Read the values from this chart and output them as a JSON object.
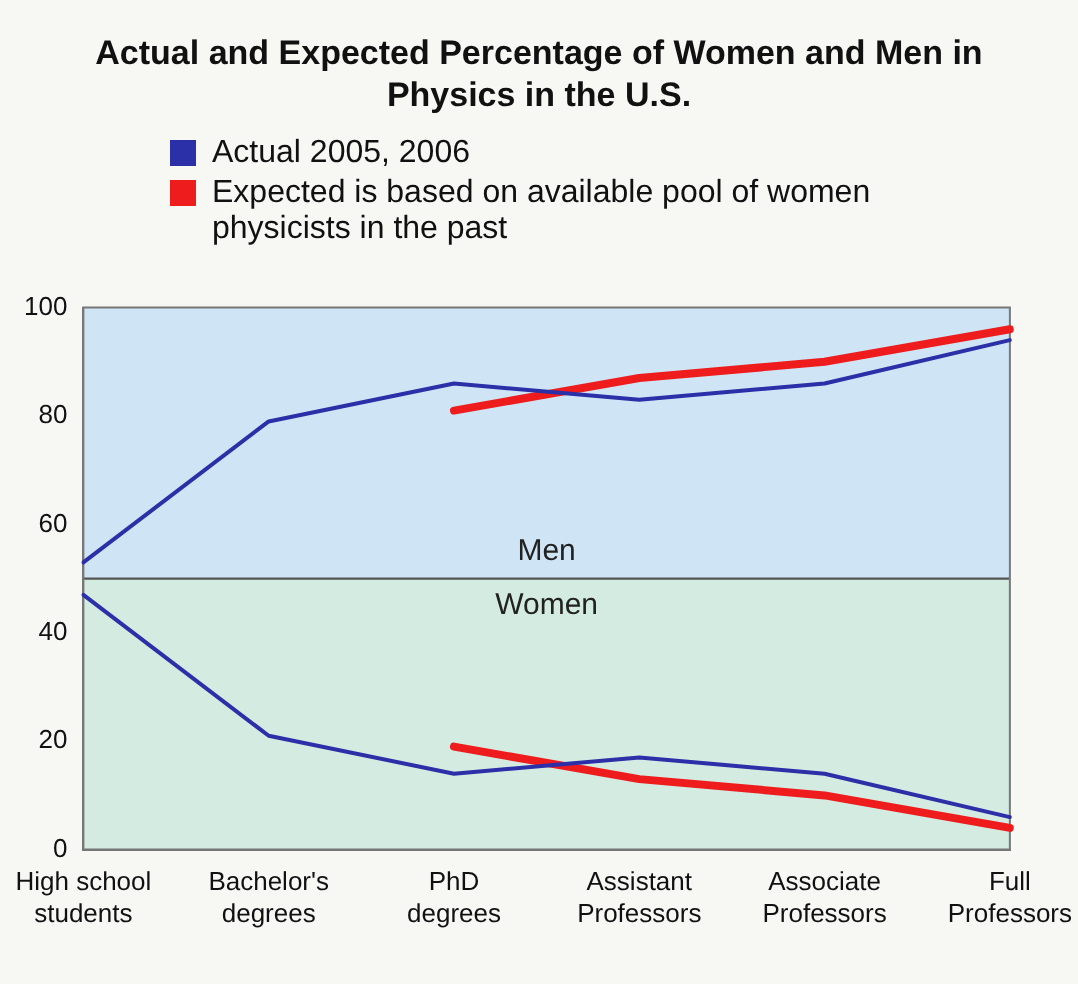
{
  "chart_data": {
    "type": "line",
    "title": "Actual and Expected Percentage of Women and Men in Physics in the U.S.",
    "categories": [
      "High school students",
      "Bachelor's degrees",
      "PhD degrees",
      "Assistant Professors",
      "Associate Professors",
      "Full Professors"
    ],
    "series": [
      {
        "name": "Actual 2005, 2006",
        "color": "#2b2fa8",
        "values": [
          53,
          79,
          86,
          83,
          86,
          94
        ]
      },
      {
        "color": "#2b2fa8",
        "values": [
          47,
          21,
          14,
          17,
          14,
          6
        ]
      },
      {
        "name": "Expected is based on available pool of women physicists in the past",
        "color": "#ee1c1c",
        "values": [
          null,
          null,
          81,
          87,
          90,
          96
        ]
      },
      {
        "color": "#ee1c1c",
        "values": [
          null,
          null,
          19,
          13,
          10,
          4
        ]
      }
    ],
    "ylim": [
      0,
      100
    ],
    "yticks": [
      0,
      20,
      40,
      60,
      80,
      100
    ],
    "grid": false,
    "legend": "top left",
    "marker": "none",
    "bands": [
      {
        "axis": "y",
        "from": 50,
        "to": 100,
        "label": "Men",
        "color": "#cfe5f6"
      },
      {
        "axis": "y",
        "from": 0,
        "to": 50,
        "label": "Women",
        "color": "#d4ebe2"
      }
    ],
    "ref_lines": [
      {
        "axis": "y",
        "value": 50,
        "color": "#555555"
      }
    ]
  }
}
